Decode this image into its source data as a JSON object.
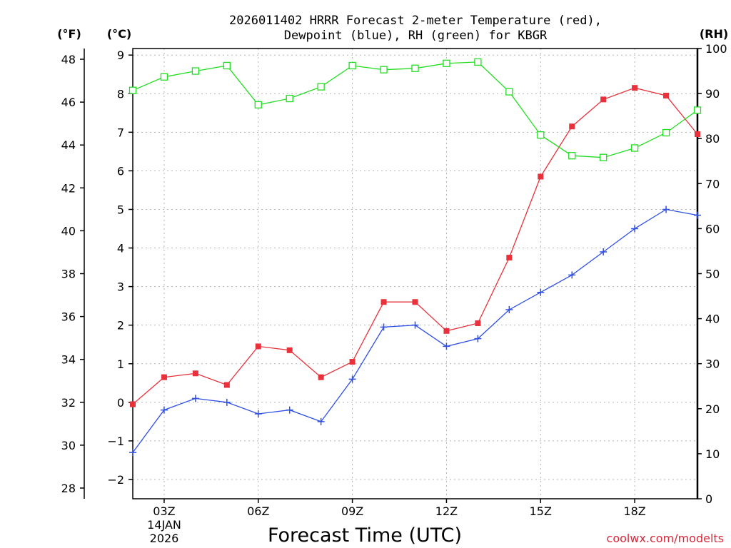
{
  "chart_data": {
    "type": "line",
    "title": [
      "2026011402 HRRR Forecast 2-meter Temperature (red),",
      "Dewpoint (blue), RH (green) for KBGR"
    ],
    "xlabel": "Forecast Time (UTC)",
    "credit": "coolwx.com/modelts",
    "date_label": [
      "14JAN",
      "2026"
    ],
    "x": [
      2,
      3,
      4,
      5,
      6,
      7,
      8,
      9,
      10,
      11,
      12,
      13,
      14,
      15,
      16,
      17,
      18,
      19,
      20
    ],
    "x_tick_positions": [
      3,
      6,
      9,
      12,
      15,
      18
    ],
    "x_tick_labels": [
      "03Z",
      "06Z",
      "09Z",
      "12Z",
      "15Z",
      "18Z"
    ],
    "xlim": [
      2,
      20
    ],
    "grid": true,
    "axes": {
      "left_f": {
        "unit": "(°F)",
        "ticks": [
          28,
          30,
          32,
          34,
          36,
          38,
          40,
          42,
          44,
          46,
          48
        ],
        "range": [
          27.5,
          48.5
        ]
      },
      "left_c": {
        "unit": "(°C)",
        "ticks": [
          -2,
          -1,
          0,
          1,
          2,
          3,
          4,
          5,
          6,
          7,
          8,
          9
        ],
        "range": [
          -2.5,
          9.17
        ]
      },
      "right_rh": {
        "unit": "(RH)",
        "ticks": [
          0,
          10,
          20,
          30,
          40,
          50,
          60,
          70,
          80,
          90,
          100
        ],
        "range": [
          0,
          100
        ]
      }
    },
    "series": [
      {
        "name": "Temperature",
        "axis": "left_c",
        "color": "#e8313a",
        "marker": "filled-square",
        "values": [
          -0.05,
          0.65,
          0.75,
          0.45,
          1.45,
          1.35,
          0.65,
          1.05,
          2.6,
          2.6,
          1.85,
          2.05,
          3.75,
          5.85,
          7.15,
          7.85,
          8.15,
          7.95,
          6.95
        ]
      },
      {
        "name": "Dewpoint",
        "axis": "left_c",
        "color": "#2e4fe6",
        "marker": "plus",
        "values": [
          -1.3,
          -0.2,
          0.1,
          0.0,
          -0.3,
          -0.2,
          -0.5,
          0.6,
          1.95,
          2.0,
          1.45,
          1.65,
          2.4,
          2.85,
          3.3,
          3.9,
          4.5,
          5.0,
          4.85
        ]
      },
      {
        "name": "RH",
        "axis": "right_rh",
        "color": "#22dd22",
        "marker": "open-square",
        "values": [
          90.7,
          93.7,
          95.0,
          96.2,
          87.5,
          88.9,
          91.5,
          96.2,
          95.3,
          95.6,
          96.7,
          97.0,
          90.4,
          80.8,
          76.2,
          75.8,
          77.9,
          81.3,
          86.3
        ]
      }
    ]
  }
}
